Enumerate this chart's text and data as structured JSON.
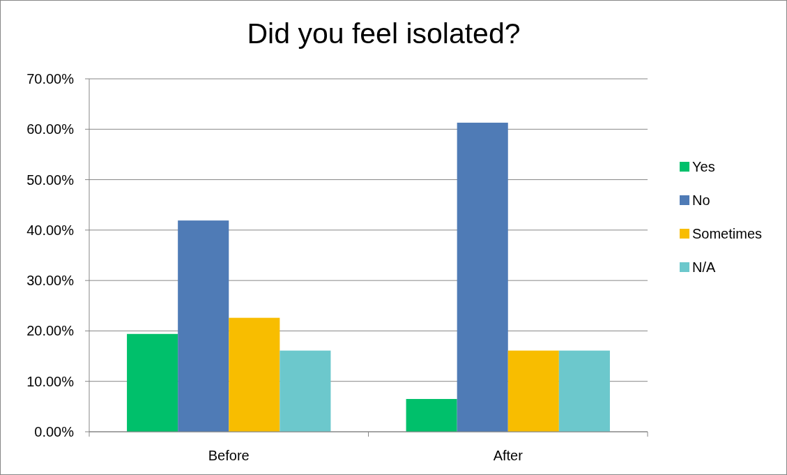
{
  "chart_data": {
    "type": "bar",
    "title": "Did you feel isolated?",
    "categories": [
      "Before",
      "After"
    ],
    "series": [
      {
        "name": "Yes",
        "color": "#00c06b",
        "values": [
          19.4,
          6.5
        ]
      },
      {
        "name": "No",
        "color": "#4f7bb6",
        "values": [
          41.9,
          61.3
        ]
      },
      {
        "name": "Sometimes",
        "color": "#f8bd00",
        "values": [
          22.6,
          16.1
        ]
      },
      {
        "name": "N/A",
        "color": "#6cc8cc",
        "values": [
          16.1,
          16.1
        ]
      }
    ],
    "ylim": [
      0,
      70
    ],
    "yticks": [
      {
        "value": 0,
        "label": "0.00%"
      },
      {
        "value": 10,
        "label": "10.00%"
      },
      {
        "value": 20,
        "label": "20.00%"
      },
      {
        "value": 30,
        "label": "30.00%"
      },
      {
        "value": 40,
        "label": "40.00%"
      },
      {
        "value": 50,
        "label": "50.00%"
      },
      {
        "value": 60,
        "label": "60.00%"
      },
      {
        "value": 70,
        "label": "70.00%"
      }
    ],
    "grid": "y",
    "legend": "right"
  }
}
